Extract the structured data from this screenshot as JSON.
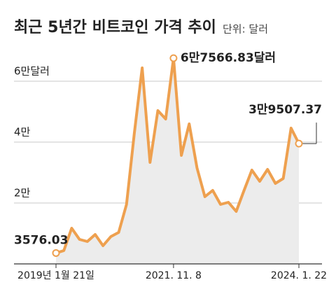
{
  "chart_data": {
    "type": "area-line",
    "title": "최근 5년간 비트코인 가격 추이",
    "subtitle": "단위: 달러",
    "categories": [
      "2019년 1월 21일",
      null,
      null,
      null,
      null,
      null,
      null,
      null,
      null,
      null,
      null,
      null,
      null,
      null,
      null,
      "2021. 11. 8",
      null,
      null,
      null,
      null,
      null,
      null,
      null,
      null,
      null,
      null,
      null,
      null,
      null,
      null,
      null,
      "2024. 1. 22"
    ],
    "series": [
      {
        "name": "비트코인 가격",
        "color": "#eea04f",
        "values": [
          3576.03,
          4368,
          11724,
          8046,
          7356,
          9655,
          5977,
          8966,
          10345,
          19540,
          42989,
          64368,
          33333,
          50345,
          47586,
          67566.83,
          35632,
          45977,
          31494,
          22069,
          24138,
          19540,
          20230,
          17241,
          24138,
          30805,
          27126,
          31034,
          26437,
          28046,
          44598,
          39507.37
        ],
        "value_labels": [
          "3576.03",
          null,
          null,
          null,
          null,
          null,
          null,
          null,
          null,
          null,
          null,
          null,
          null,
          null,
          null,
          "6만7566.83달러",
          null,
          null,
          null,
          null,
          null,
          null,
          null,
          null,
          null,
          null,
          null,
          null,
          null,
          null,
          null,
          "3만9507.37"
        ]
      }
    ],
    "ylim": [
      0,
      70000
    ],
    "yticks": [
      {
        "value": 20000,
        "label": "2만"
      },
      {
        "value": 40000,
        "label": "4만"
      },
      {
        "value": 60000,
        "label": "6만달러"
      }
    ],
    "grid": true
  }
}
